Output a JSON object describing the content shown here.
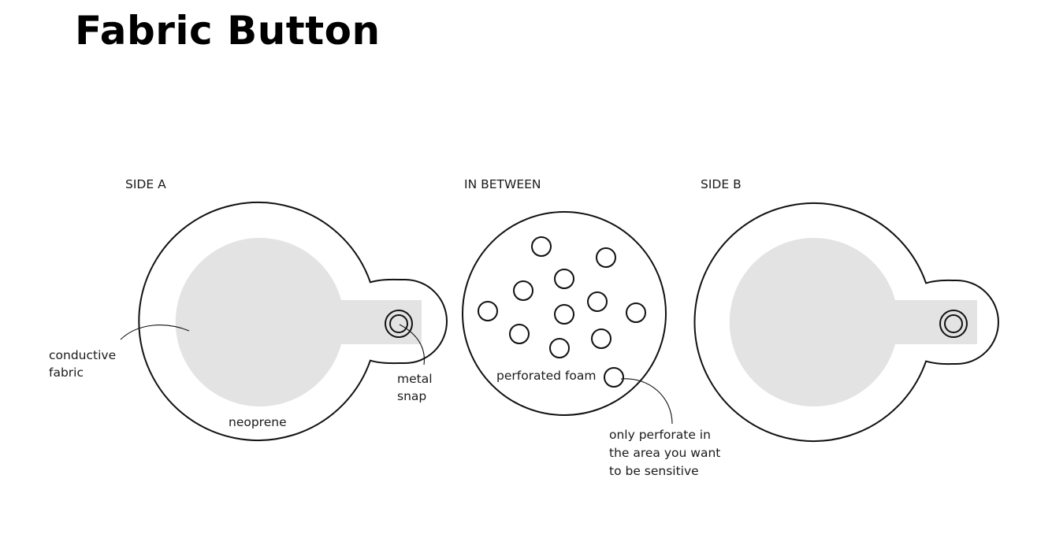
{
  "title": "Fabric Button",
  "panels": {
    "side_a": "SIDE A",
    "in_between": "IN BETWEEN",
    "side_b": "SIDE B"
  },
  "labels": {
    "conductive_fabric": [
      "conductive",
      "fabric"
    ],
    "neoprene": "neoprene",
    "metal_snap": [
      "metal",
      "snap"
    ],
    "perforated_foam": "perforated foam",
    "perforate_note": [
      "only perforate in",
      "the area you want",
      "to be sensitive"
    ]
  },
  "colors": {
    "conductive_fabric": "#e3e3e3",
    "outline": "#111111",
    "background": "#ffffff"
  }
}
